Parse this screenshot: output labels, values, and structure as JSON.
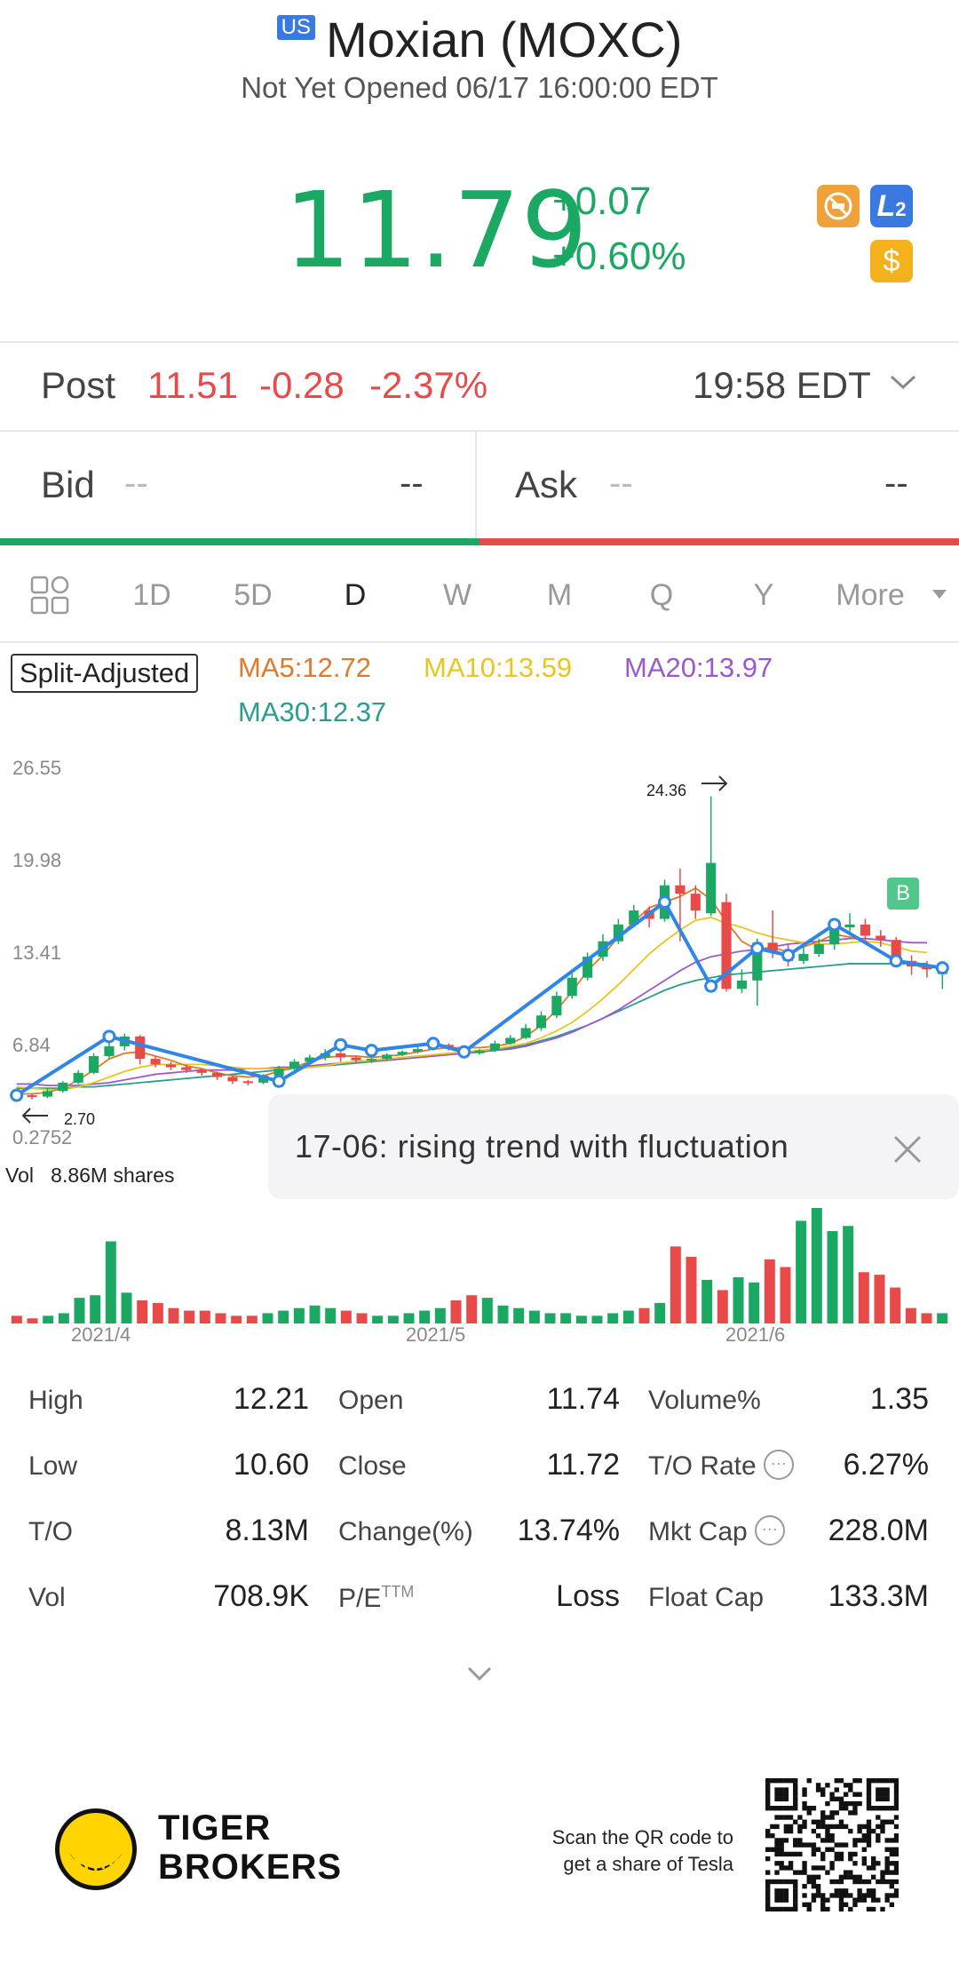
{
  "header": {
    "market_badge": "US",
    "title": "Moxian (MOXC)",
    "status": "Not Yet Opened 06/17 16:00:00 EDT"
  },
  "quote": {
    "price": "11.79",
    "change": "+0.07",
    "change_pct": "+0.60%",
    "badges": [
      "no-margin-icon",
      "L2-icon",
      "dollar-icon"
    ],
    "l2_label": "L",
    "l2_sub": "2",
    "dollar_label": "$"
  },
  "post": {
    "label": "Post",
    "price": "11.51",
    "change": "-0.28",
    "change_pct": "-2.37%",
    "time": "19:58 EDT"
  },
  "bid_ask": {
    "bid_label": "Bid",
    "bid_price": "--",
    "bid_vol": "--",
    "ask_label": "Ask",
    "ask_price": "--",
    "ask_vol": "--"
  },
  "tabs": [
    "1D",
    "5D",
    "D",
    "W",
    "M",
    "Q",
    "Y",
    "More"
  ],
  "active_tab": "D",
  "indicators": {
    "split_adjusted": "Split-Adjusted",
    "ma5": "MA5:12.72",
    "ma10": "MA10:13.59",
    "ma20": "MA20:13.97",
    "ma30": "MA30:12.37"
  },
  "colors": {
    "up": "#1aa863",
    "down": "#e84a4a",
    "ma5": "#e2792a",
    "ma10": "#e8c620",
    "ma20": "#9b59d0",
    "ma30": "#2a9d8f",
    "trend": "#2f86e6"
  },
  "chart_data": {
    "type": "candlestick",
    "y_ticks": [
      "26.55",
      "19.98",
      "13.41",
      "6.84",
      "0.2752"
    ],
    "x_ticks": [
      "2021/4",
      "2021/5",
      "2021/6"
    ],
    "high_label": "24.36",
    "low_label": "2.70",
    "signal_label": "B",
    "volume_label": "Vol",
    "volume_value": "8.86M shares",
    "tooltip": "17-06: rising trend with fluctuation",
    "candles": [
      {
        "o": 3.2,
        "c": 3.0,
        "h": 3.4,
        "l": 2.8
      },
      {
        "o": 3.0,
        "c": 2.9,
        "h": 3.1,
        "l": 2.7
      },
      {
        "o": 2.9,
        "c": 3.3,
        "h": 3.5,
        "l": 2.8
      },
      {
        "o": 3.3,
        "c": 3.9,
        "h": 4.0,
        "l": 3.2
      },
      {
        "o": 3.9,
        "c": 4.6,
        "h": 4.8,
        "l": 3.8
      },
      {
        "o": 4.6,
        "c": 5.8,
        "h": 6.0,
        "l": 4.5
      },
      {
        "o": 5.8,
        "c": 6.5,
        "h": 7.0,
        "l": 5.6
      },
      {
        "o": 6.5,
        "c": 7.2,
        "h": 7.4,
        "l": 6.2
      },
      {
        "o": 7.2,
        "c": 5.6,
        "h": 7.3,
        "l": 5.2
      },
      {
        "o": 5.6,
        "c": 5.2,
        "h": 5.8,
        "l": 5.0
      },
      {
        "o": 5.2,
        "c": 5.0,
        "h": 5.4,
        "l": 4.8
      },
      {
        "o": 5.0,
        "c": 4.8,
        "h": 5.2,
        "l": 4.6
      },
      {
        "o": 4.8,
        "c": 4.6,
        "h": 4.9,
        "l": 4.4
      },
      {
        "o": 4.6,
        "c": 4.3,
        "h": 4.7,
        "l": 4.1
      },
      {
        "o": 4.3,
        "c": 4.0,
        "h": 4.4,
        "l": 3.8
      },
      {
        "o": 4.0,
        "c": 3.9,
        "h": 4.1,
        "l": 3.7
      },
      {
        "o": 3.9,
        "c": 4.4,
        "h": 4.5,
        "l": 3.8
      },
      {
        "o": 4.4,
        "c": 4.9,
        "h": 5.1,
        "l": 4.3
      },
      {
        "o": 4.9,
        "c": 5.4,
        "h": 5.6,
        "l": 4.8
      },
      {
        "o": 5.4,
        "c": 5.7,
        "h": 5.9,
        "l": 5.2
      },
      {
        "o": 5.7,
        "c": 6.0,
        "h": 6.3,
        "l": 5.5
      },
      {
        "o": 6.0,
        "c": 5.7,
        "h": 6.1,
        "l": 5.4
      },
      {
        "o": 5.7,
        "c": 5.5,
        "h": 5.8,
        "l": 5.3
      },
      {
        "o": 5.5,
        "c": 5.6,
        "h": 5.8,
        "l": 5.3
      },
      {
        "o": 5.6,
        "c": 5.9,
        "h": 6.0,
        "l": 5.5
      },
      {
        "o": 5.9,
        "c": 6.1,
        "h": 6.2,
        "l": 5.8
      },
      {
        "o": 6.1,
        "c": 6.3,
        "h": 6.5,
        "l": 6.0
      },
      {
        "o": 6.3,
        "c": 6.6,
        "h": 6.8,
        "l": 6.2
      },
      {
        "o": 6.6,
        "c": 6.4,
        "h": 6.7,
        "l": 6.2
      },
      {
        "o": 6.4,
        "c": 6.0,
        "h": 6.5,
        "l": 5.9
      },
      {
        "o": 6.0,
        "c": 6.2,
        "h": 6.3,
        "l": 5.9
      },
      {
        "o": 6.2,
        "c": 6.7,
        "h": 6.9,
        "l": 6.1
      },
      {
        "o": 6.7,
        "c": 7.1,
        "h": 7.3,
        "l": 6.6
      },
      {
        "o": 7.1,
        "c": 7.8,
        "h": 8.1,
        "l": 7.0
      },
      {
        "o": 7.8,
        "c": 8.7,
        "h": 9.0,
        "l": 7.6
      },
      {
        "o": 8.7,
        "c": 10.1,
        "h": 10.4,
        "l": 8.5
      },
      {
        "o": 10.1,
        "c": 11.4,
        "h": 11.8,
        "l": 9.9
      },
      {
        "o": 11.4,
        "c": 12.9,
        "h": 13.2,
        "l": 11.2
      },
      {
        "o": 12.9,
        "c": 14.0,
        "h": 14.5,
        "l": 12.6
      },
      {
        "o": 14.0,
        "c": 15.2,
        "h": 15.6,
        "l": 13.8
      },
      {
        "o": 15.2,
        "c": 16.2,
        "h": 16.6,
        "l": 15.0
      },
      {
        "o": 16.2,
        "c": 15.6,
        "h": 16.5,
        "l": 15.0
      },
      {
        "o": 15.6,
        "c": 18.0,
        "h": 18.4,
        "l": 15.4
      },
      {
        "o": 18.0,
        "c": 17.4,
        "h": 19.2,
        "l": 14.0
      },
      {
        "o": 17.4,
        "c": 16.2,
        "h": 18.0,
        "l": 15.6
      },
      {
        "o": 16.0,
        "c": 19.6,
        "h": 24.36,
        "l": 15.8
      },
      {
        "o": 16.8,
        "c": 10.6,
        "h": 17.4,
        "l": 10.4
      },
      {
        "o": 10.6,
        "c": 11.2,
        "h": 12.0,
        "l": 10.3
      },
      {
        "o": 11.2,
        "c": 13.9,
        "h": 14.2,
        "l": 9.4
      },
      {
        "o": 13.9,
        "c": 13.2,
        "h": 16.2,
        "l": 12.8
      },
      {
        "o": 13.2,
        "c": 12.6,
        "h": 13.8,
        "l": 12.2
      },
      {
        "o": 12.6,
        "c": 13.1,
        "h": 13.6,
        "l": 12.4
      },
      {
        "o": 13.1,
        "c": 13.8,
        "h": 14.2,
        "l": 12.9
      },
      {
        "o": 13.8,
        "c": 15.0,
        "h": 15.5,
        "l": 13.4
      },
      {
        "o": 15.0,
        "c": 15.2,
        "h": 16.0,
        "l": 14.6
      },
      {
        "o": 15.2,
        "c": 14.4,
        "h": 15.6,
        "l": 14.0
      },
      {
        "o": 14.4,
        "c": 14.1,
        "h": 14.8,
        "l": 13.6
      },
      {
        "o": 14.1,
        "c": 12.6,
        "h": 14.3,
        "l": 12.2
      },
      {
        "o": 12.6,
        "c": 12.2,
        "h": 13.0,
        "l": 11.6
      },
      {
        "o": 12.2,
        "c": 12.0,
        "h": 12.6,
        "l": 11.4
      },
      {
        "o": 11.74,
        "c": 11.79,
        "h": 12.21,
        "l": 10.6
      }
    ],
    "volumes": [
      3,
      2,
      3,
      4,
      10,
      11,
      32,
      12,
      9,
      8,
      6,
      5,
      5,
      4,
      3,
      3,
      4,
      5,
      6,
      7,
      6,
      5,
      4,
      3,
      3,
      4,
      5,
      6,
      9,
      11,
      10,
      7,
      6,
      5,
      4,
      4,
      3,
      3,
      4,
      5,
      6,
      8,
      30,
      26,
      17,
      13,
      18,
      16,
      25,
      22,
      40,
      45,
      36,
      38,
      20,
      19,
      14,
      6,
      4,
      4
    ],
    "trend_points": [
      [
        0,
        3.0
      ],
      [
        4,
        7.2
      ],
      [
        11,
        4.0
      ],
      [
        14,
        6.6
      ],
      [
        15,
        6.2
      ],
      [
        18,
        6.7
      ],
      [
        19,
        6.1
      ],
      [
        28,
        16.8
      ],
      [
        30,
        10.8
      ],
      [
        32,
        13.5
      ],
      [
        33,
        13.0
      ],
      [
        35,
        15.2
      ],
      [
        38,
        12.6
      ],
      [
        40,
        12.1
      ]
    ],
    "ma": {
      "ma5": [
        3.1,
        3.1,
        3.2,
        3.5,
        4.1,
        4.8,
        5.6,
        6.0,
        6.1,
        5.8,
        5.5,
        5.1,
        4.9,
        4.6,
        4.4,
        4.3,
        4.4,
        4.7,
        5.0,
        5.4,
        5.7,
        5.8,
        5.8,
        5.7,
        5.8,
        5.9,
        6.1,
        6.3,
        6.4,
        6.4,
        6.4,
        6.5,
        6.7,
        7.2,
        8.0,
        9.1,
        10.4,
        11.9,
        13.0,
        14.3,
        15.4,
        16.4,
        16.8,
        17.2,
        17.8,
        17.0,
        15.4,
        14.0,
        13.4,
        13.6,
        13.2,
        13.6,
        14.0,
        14.5,
        14.3,
        14.0,
        13.3,
        12.7,
        12.4,
        12.0
      ],
      "ma10": [
        3.6,
        3.5,
        3.4,
        3.4,
        3.6,
        3.9,
        4.3,
        4.7,
        5.0,
        5.2,
        5.2,
        5.2,
        5.2,
        5.1,
        5.0,
        4.9,
        4.9,
        4.9,
        4.9,
        5.0,
        5.1,
        5.3,
        5.4,
        5.5,
        5.6,
        5.7,
        5.8,
        5.9,
        6.0,
        6.1,
        6.2,
        6.3,
        6.5,
        6.7,
        7.1,
        7.6,
        8.2,
        9.0,
        9.9,
        10.9,
        12.0,
        13.1,
        14.0,
        14.8,
        15.5,
        15.7,
        15.3,
        15.0,
        14.6,
        14.3,
        14.1,
        13.9,
        13.8,
        13.8,
        13.9,
        14.0,
        13.9,
        13.6,
        13.3,
        13.2
      ],
      "ma20": [
        3.8,
        3.8,
        3.7,
        3.7,
        3.7,
        3.8,
        3.9,
        4.1,
        4.3,
        4.5,
        4.6,
        4.7,
        4.8,
        4.8,
        4.8,
        4.9,
        4.9,
        5.0,
        5.0,
        5.1,
        5.2,
        5.3,
        5.4,
        5.5,
        5.5,
        5.6,
        5.7,
        5.8,
        5.9,
        6.0,
        6.1,
        6.2,
        6.3,
        6.5,
        6.8,
        7.1,
        7.5,
        8.0,
        8.5,
        9.1,
        9.8,
        10.5,
        11.2,
        11.9,
        12.5,
        12.9,
        13.1,
        13.3,
        13.4,
        13.6,
        13.8,
        13.9,
        14.0,
        14.1,
        14.2,
        14.2,
        14.1,
        14.0,
        13.9,
        13.9
      ],
      "ma30": [
        3.5,
        3.5,
        3.5,
        3.5,
        3.6,
        3.6,
        3.7,
        3.8,
        3.9,
        4.0,
        4.1,
        4.2,
        4.3,
        4.4,
        4.5,
        4.6,
        4.7,
        4.8,
        4.9,
        5.0,
        5.1,
        5.2,
        5.3,
        5.4,
        5.5,
        5.6,
        5.7,
        5.8,
        5.9,
        6.0,
        6.1,
        6.2,
        6.4,
        6.6,
        6.9,
        7.2,
        7.6,
        8.0,
        8.5,
        9.0,
        9.5,
        10.0,
        10.5,
        10.9,
        11.2,
        11.4,
        11.6,
        11.7,
        11.8,
        11.9,
        12.0,
        12.1,
        12.2,
        12.3,
        12.4,
        12.4,
        12.4,
        12.4,
        12.4,
        12.4
      ]
    }
  },
  "stats": {
    "col1": [
      [
        "High",
        "12.21"
      ],
      [
        "Low",
        "10.60"
      ],
      [
        "T/O",
        "8.13M"
      ],
      [
        "Vol",
        "708.9K"
      ]
    ],
    "col2": [
      [
        "Open",
        "11.74"
      ],
      [
        "Close",
        "11.72"
      ],
      [
        "Change(%)",
        "13.74%"
      ],
      [
        "P/E",
        "Loss"
      ]
    ],
    "pe_sup": "TTM",
    "col3": [
      [
        "Volume%",
        "1.35"
      ],
      [
        "T/O Rate",
        "6.27%"
      ],
      [
        "Mkt Cap",
        "228.0M"
      ],
      [
        "Float Cap",
        "133.3M"
      ]
    ],
    "info_glyph": "···"
  },
  "footer": {
    "brand_line1": "TIGER",
    "brand_line2": "BROKERS",
    "scan_line1": "Scan the QR code to",
    "scan_line2": "get a share of Tesla"
  }
}
